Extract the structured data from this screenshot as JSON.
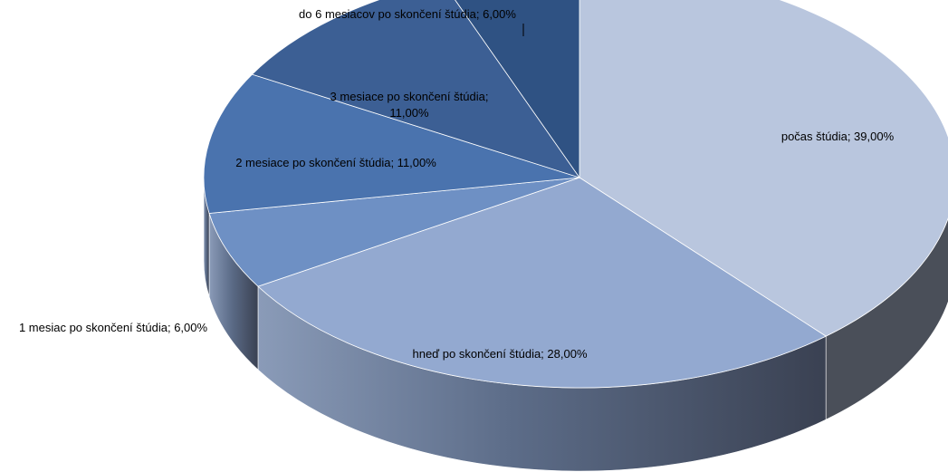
{
  "chart_data": {
    "type": "pie",
    "style": "3d",
    "title": "",
    "slices": [
      {
        "name": "počas štúdia",
        "value": 39.0,
        "label": "počas štúdia; 39,00%",
        "color": "#b9c6de"
      },
      {
        "name": "hneď po skončení štúdia",
        "value": 28.0,
        "label": "hneď po skončení štúdia; 28,00%",
        "color": "#93a9d0"
      },
      {
        "name": "1 mesiac po skončení štúdia",
        "value": 6.0,
        "label": "1 mesiac po skončení štúdia; 6,00%",
        "color": "#6e90c4"
      },
      {
        "name": "2 mesiace po skončení štúdia",
        "value": 11.0,
        "label": "2 mesiace po skončení štúdia; 11,00%",
        "color": "#4a73ae"
      },
      {
        "name": "3 mesiace po skončení štúdia",
        "value": 11.0,
        "label": "3 mesiace po skončení štúdia; 11,00%",
        "label_lines": [
          "3 mesiace po skončení štúdia;",
          "11,00%"
        ],
        "color": "#3c5f94"
      },
      {
        "name": "do 6 mesiacov po skončení štúdia",
        "value": 6.0,
        "label": "do 6 mesiacov po skončení štúdia; 6,00%",
        "color": "#2f5283"
      }
    ],
    "legend": "none",
    "data_labels": "category; percent"
  }
}
